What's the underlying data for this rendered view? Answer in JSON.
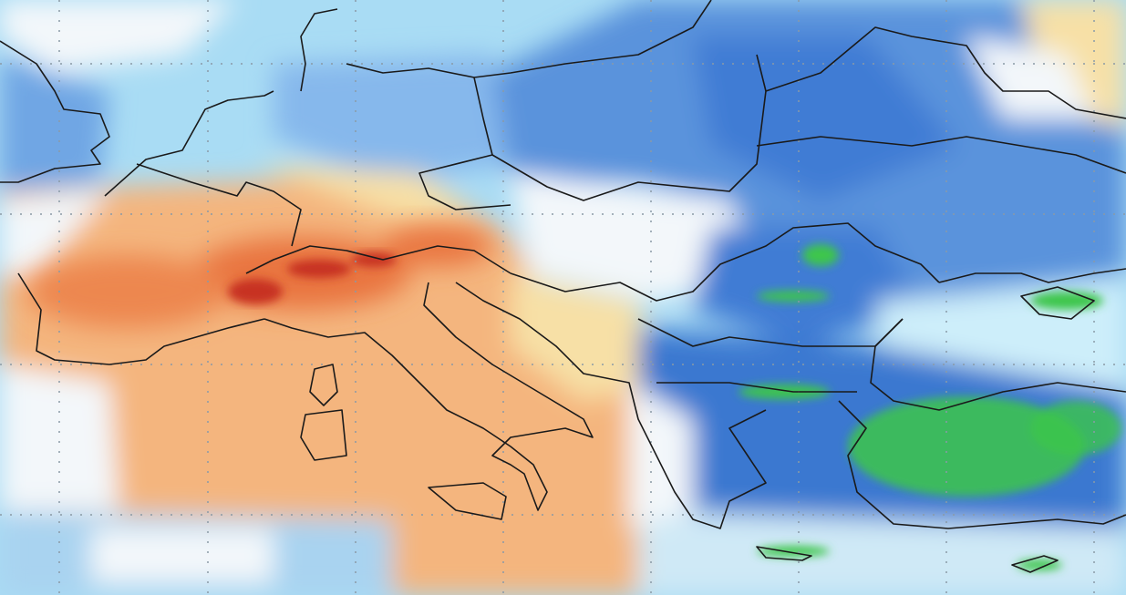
{
  "map": {
    "type": "weather-field-map",
    "region": "Europe",
    "colors": {
      "background_sea": "#a9dcf4",
      "light_blue": "#bfe8f8",
      "mid_blue": "#86b8ec",
      "deep_blue": "#4a86d8",
      "darker_blue": "#2f6cc8",
      "white": "#f3f7fa",
      "pale_yellow": "#f7e0a6",
      "orange": "#f4b57e",
      "red_orange": "#e9743f",
      "deep_red": "#c73221",
      "green": "#3cc64b",
      "border": "#1a1a1a",
      "grid": "#8a9aa6"
    },
    "gridlines": "dotted",
    "legend": "none"
  }
}
